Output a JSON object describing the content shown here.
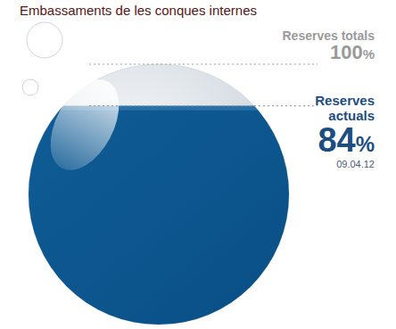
{
  "chart_data": {
    "type": "fill",
    "title": "Embassaments de les conques internes",
    "categories": [
      "Reserves totals",
      "Reserves actuals"
    ],
    "values": [
      100,
      84
    ],
    "value_labels": [
      "100%",
      "84%"
    ],
    "annotation": "09.04.12",
    "ylim": [
      0,
      100
    ],
    "tick_labels": false,
    "colors": [
      "#9a9a9a",
      "#0f5c96"
    ]
  }
}
